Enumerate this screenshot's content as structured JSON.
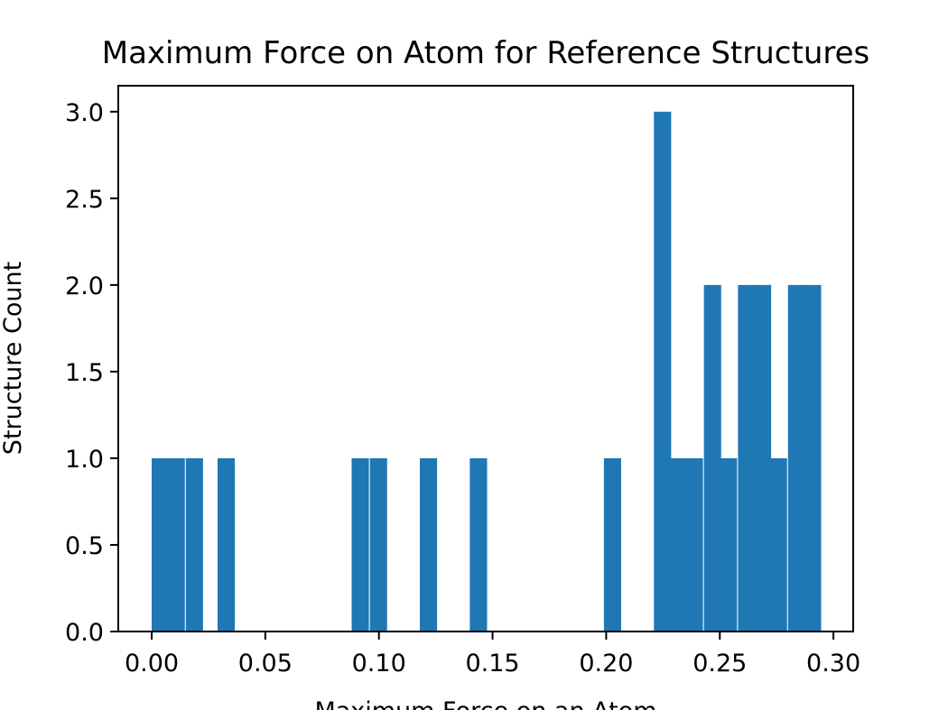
{
  "chart_data": {
    "type": "bar",
    "title": "Maximum Force on Atom for Reference Structures",
    "xlabel": "Maximum Force on an Atom",
    "ylabel": "Structure Count",
    "xlim": [
      -0.0147,
      0.3087
    ],
    "ylim": [
      0,
      3.15
    ],
    "grid": false,
    "bin_width": 0.00735,
    "x_ticks": [
      0.0,
      0.05,
      0.1,
      0.15,
      0.2,
      0.25,
      0.3
    ],
    "x_tick_labels": [
      "0.00",
      "0.05",
      "0.10",
      "0.15",
      "0.20",
      "0.25",
      "0.30"
    ],
    "y_ticks": [
      0.0,
      0.5,
      1.0,
      1.5,
      2.0,
      2.5,
      3.0
    ],
    "y_tick_labels": [
      "0.0",
      "0.5",
      "1.0",
      "1.5",
      "2.0",
      "2.5",
      "3.0"
    ],
    "bar_color": "#1f77b4",
    "bins": [
      {
        "x": 0.0,
        "count": 1
      },
      {
        "x": 0.007,
        "count": 1
      },
      {
        "x": 0.015,
        "count": 1
      },
      {
        "x": 0.029,
        "count": 1
      },
      {
        "x": 0.088,
        "count": 1
      },
      {
        "x": 0.096,
        "count": 1
      },
      {
        "x": 0.118,
        "count": 1
      },
      {
        "x": 0.14,
        "count": 1
      },
      {
        "x": 0.199,
        "count": 1
      },
      {
        "x": 0.221,
        "count": 3
      },
      {
        "x": 0.228,
        "count": 1
      },
      {
        "x": 0.235,
        "count": 1
      },
      {
        "x": 0.243,
        "count": 2
      },
      {
        "x": 0.25,
        "count": 1
      },
      {
        "x": 0.258,
        "count": 2
      },
      {
        "x": 0.265,
        "count": 2
      },
      {
        "x": 0.272,
        "count": 1
      },
      {
        "x": 0.28,
        "count": 2
      },
      {
        "x": 0.287,
        "count": 2
      }
    ]
  }
}
